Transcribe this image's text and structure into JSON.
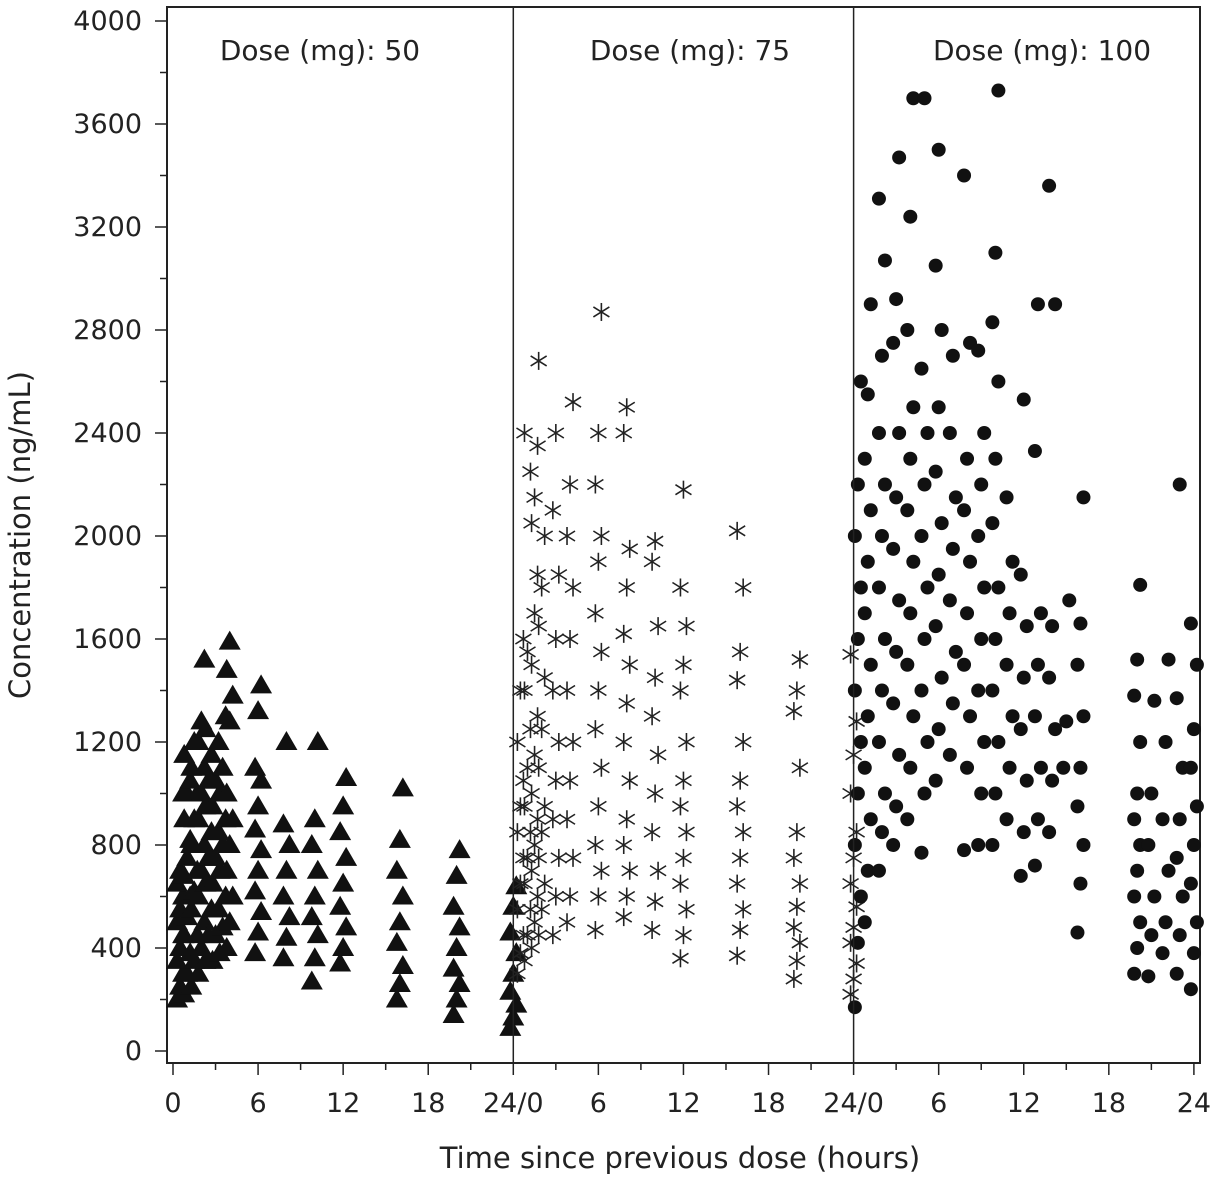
{
  "chart_data": {
    "type": "scatter",
    "title": "",
    "xlabel": "Time since previous dose (hours)",
    "ylabel": "Concentration (ng/mL)",
    "ylim": [
      0,
      4000
    ],
    "xlim_per_panel": [
      0,
      24
    ],
    "yticks": [
      0,
      400,
      800,
      1200,
      1600,
      2000,
      2400,
      2800,
      3200,
      3600,
      4000
    ],
    "ytick_labels": [
      "0",
      "400",
      "800",
      "1200",
      "1600",
      "2000",
      "2400",
      "2800",
      "3200",
      "3600",
      "4000"
    ],
    "xtick_labels": [
      "0",
      "6",
      "12",
      "18",
      "24/0",
      "6",
      "12",
      "18",
      "24/0",
      "6",
      "12",
      "18",
      "24"
    ],
    "grid": false,
    "panels": [
      {
        "label": "Dose (mg): 50",
        "marker": "triangle",
        "columns": [
          {
            "t": 0.5,
            "c": [
              200,
              250,
              300,
              350,
              400,
              450,
              500,
              550,
              600,
              650,
              700,
              1000
            ]
          },
          {
            "t": 1,
            "c": [
              220,
              300,
              380,
              450,
              520,
              600,
              680,
              750,
              820,
              900,
              1000,
              1050,
              1150
            ]
          },
          {
            "t": 1.5,
            "c": [
              250,
              350,
              450,
              550,
              620,
              700,
              800,
              900,
              1000,
              1100,
              1200
            ]
          },
          {
            "t": 2,
            "c": [
              300,
              400,
              500,
              600,
              700,
              800,
              900,
              1000,
              1100,
              1200,
              1280,
              1520
            ]
          },
          {
            "t": 2.5,
            "c": [
              350,
              450,
              550,
              650,
              750,
              850,
              950,
              1050,
              1150,
              1250
            ]
          },
          {
            "t": 3,
            "c": [
              350,
              450,
              550,
              650,
              750,
              850,
              950,
              1050,
              1200
            ]
          },
          {
            "t": 3.5,
            "c": [
              380,
              480,
              600,
              700,
              800,
              900,
              1000,
              1100,
              1300
            ]
          },
          {
            "t": 4,
            "c": [
              400,
              500,
              600,
              700,
              800,
              900,
              1000,
              1280,
              1380,
              1480,
              1590
            ]
          },
          {
            "t": 6,
            "c": [
              380,
              460,
              540,
              620,
              700,
              780,
              860,
              950,
              1050,
              1100,
              1320,
              1420
            ]
          },
          {
            "t": 8,
            "c": [
              360,
              440,
              520,
              600,
              700,
              800,
              880,
              1200
            ]
          },
          {
            "t": 10,
            "c": [
              270,
              360,
              450,
              520,
              600,
              700,
              800,
              900,
              1200
            ]
          },
          {
            "t": 12,
            "c": [
              340,
              400,
              480,
              560,
              650,
              750,
              850,
              950,
              1060
            ]
          },
          {
            "t": 16,
            "c": [
              200,
              260,
              330,
              420,
              500,
              600,
              700,
              820,
              1020
            ]
          },
          {
            "t": 20,
            "c": [
              140,
              200,
              260,
              320,
              400,
              480,
              560,
              680,
              780
            ]
          },
          {
            "t": 24,
            "c": [
              90,
              130,
              180,
              230,
              300,
              380,
              460,
              560,
              640
            ]
          }
        ]
      },
      {
        "label": "Dose (mg): 75",
        "marker": "asterisk",
        "columns": [
          {
            "t": 0.5,
            "c": [
              300,
              380,
              450,
              550,
              650,
              750,
              850,
              950,
              1050,
              1200,
              1400,
              1600
            ]
          },
          {
            "t": 1,
            "c": [
              350,
              450,
              550,
              650,
              750,
              850,
              950,
              1100,
              1250,
              1400,
              1550,
              2250,
              2400
            ]
          },
          {
            "t": 1.5,
            "c": [
              400,
              500,
              600,
              700,
              800,
              900,
              1000,
              1150,
              1300,
              1500,
              1700,
              1850,
              2050,
              2150,
              2350
            ]
          },
          {
            "t": 2,
            "c": [
              450,
              550,
              650,
              750,
              850,
              950,
              1100,
              1250,
              1450,
              1650,
              1800,
              2000,
              2680
            ]
          },
          {
            "t": 3,
            "c": [
              450,
              600,
              750,
              900,
              1050,
              1200,
              1400,
              1600,
              1850,
              2100,
              2400
            ]
          },
          {
            "t": 4,
            "c": [
              500,
              600,
              750,
              900,
              1050,
              1200,
              1400,
              1600,
              1800,
              2000,
              2200,
              2520
            ]
          },
          {
            "t": 6,
            "c": [
              470,
              600,
              700,
              800,
              950,
              1100,
              1250,
              1400,
              1550,
              1700,
              1900,
              2000,
              2200,
              2400,
              2870
            ]
          },
          {
            "t": 8,
            "c": [
              520,
              600,
              700,
              800,
              900,
              1050,
              1200,
              1350,
              1500,
              1620,
              1800,
              1950,
              2400,
              2500
            ]
          },
          {
            "t": 10,
            "c": [
              470,
              580,
              700,
              850,
              1000,
              1150,
              1300,
              1450,
              1650,
              1900,
              1980
            ]
          },
          {
            "t": 12,
            "c": [
              360,
              450,
              550,
              650,
              750,
              850,
              950,
              1050,
              1200,
              1400,
              1500,
              1650,
              1800,
              2180
            ]
          },
          {
            "t": 16,
            "c": [
              370,
              470,
              550,
              650,
              750,
              850,
              950,
              1050,
              1200,
              1440,
              1550,
              1800,
              2020
            ]
          },
          {
            "t": 20,
            "c": [
              280,
              350,
              420,
              480,
              560,
              650,
              750,
              850,
              1100,
              1320,
              1400,
              1520
            ]
          },
          {
            "t": 24,
            "c": [
              220,
              280,
              340,
              420,
              480,
              560,
              650,
              750,
              850,
              1000,
              1150,
              1280,
              1540
            ]
          }
        ]
      },
      {
        "label": "Dose (mg): 100",
        "marker": "circle",
        "columns": [
          {
            "t": 0.3,
            "c": [
              170,
              420,
              600,
              800,
              1000,
              1200,
              1400,
              1600,
              1800,
              2000,
              2200,
              2600
            ]
          },
          {
            "t": 1,
            "c": [
              500,
              700,
              900,
              1100,
              1300,
              1500,
              1700,
              1900,
              2100,
              2300,
              2550,
              2900
            ]
          },
          {
            "t": 2,
            "c": [
              700,
              850,
              1000,
              1200,
              1400,
              1600,
              1800,
              2000,
              2200,
              2400,
              2700,
              3070,
              3310
            ]
          },
          {
            "t": 3,
            "c": [
              800,
              950,
              1150,
              1350,
              1550,
              1750,
              1950,
              2150,
              2400,
              2750,
              2920,
              3470
            ]
          },
          {
            "t": 4,
            "c": [
              900,
              1100,
              1300,
              1500,
              1700,
              1900,
              2100,
              2300,
              2500,
              2800,
              3240,
              3700
            ]
          },
          {
            "t": 5,
            "c": [
              770,
              1000,
              1200,
              1400,
              1600,
              1800,
              2000,
              2200,
              2400,
              2650,
              3700
            ]
          },
          {
            "t": 6,
            "c": [
              1050,
              1250,
              1450,
              1650,
              1850,
              2050,
              2250,
              2500,
              2800,
              3050,
              3500
            ]
          },
          {
            "t": 7,
            "c": [
              1150,
              1350,
              1550,
              1750,
              1950,
              2150,
              2400,
              2700
            ]
          },
          {
            "t": 8,
            "c": [
              780,
              1100,
              1300,
              1500,
              1700,
              1900,
              2100,
              2300,
              2750,
              3400
            ]
          },
          {
            "t": 9,
            "c": [
              800,
              1000,
              1200,
              1400,
              1600,
              1800,
              2000,
              2200,
              2400,
              2720
            ]
          },
          {
            "t": 10,
            "c": [
              800,
              1000,
              1200,
              1400,
              1600,
              1800,
              2050,
              2300,
              2600,
              2830,
              3100,
              3730
            ]
          },
          {
            "t": 11,
            "c": [
              900,
              1100,
              1300,
              1500,
              1700,
              1900,
              2150
            ]
          },
          {
            "t": 12,
            "c": [
              680,
              850,
              1050,
              1250,
              1450,
              1650,
              1850,
              2530
            ]
          },
          {
            "t": 13,
            "c": [
              720,
              900,
              1100,
              1300,
              1500,
              1700,
              2330,
              2900
            ]
          },
          {
            "t": 14,
            "c": [
              850,
              1050,
              1250,
              1450,
              1650,
              2900,
              3360
            ]
          },
          {
            "t": 15,
            "c": [
              1100,
              1280,
              1750
            ]
          },
          {
            "t": 16,
            "c": [
              460,
              650,
              800,
              950,
              1100,
              1300,
              1500,
              1660,
              2150
            ]
          },
          {
            "t": 20,
            "c": [
              300,
              400,
              500,
              600,
              700,
              800,
              900,
              1000,
              1200,
              1380,
              1520,
              1810
            ]
          },
          {
            "t": 21,
            "c": [
              290,
              450,
              600,
              800,
              1000,
              1360
            ]
          },
          {
            "t": 22,
            "c": [
              380,
              500,
              700,
              900,
              1200,
              1520
            ]
          },
          {
            "t": 23,
            "c": [
              300,
              450,
              600,
              750,
              900,
              1100,
              1370,
              2200
            ]
          },
          {
            "t": 24,
            "c": [
              240,
              380,
              500,
              650,
              800,
              950,
              1100,
              1250,
              1500,
              1660
            ]
          }
        ]
      }
    ]
  }
}
